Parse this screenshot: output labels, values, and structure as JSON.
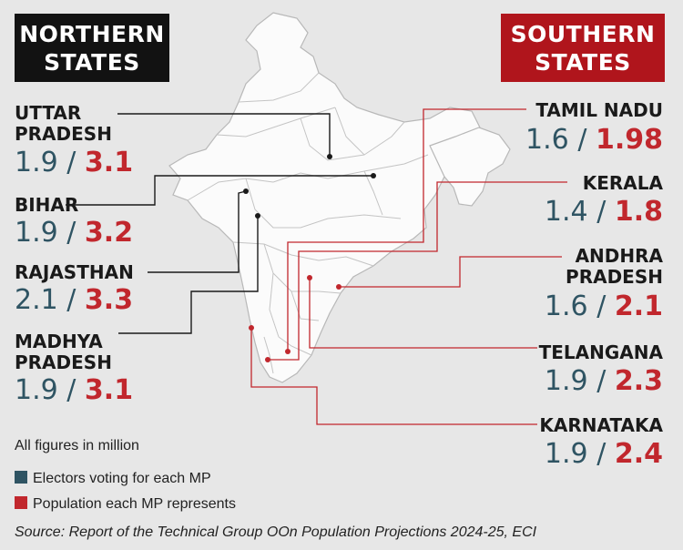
{
  "headers": {
    "northern": [
      "NORTHERN",
      "STATES"
    ],
    "southern": [
      "SOUTHERN",
      "STATES"
    ]
  },
  "northern_states": [
    {
      "name_lines": [
        "UTTAR",
        "PRADESH"
      ],
      "electors": "1.9",
      "population": "3.1"
    },
    {
      "name_lines": [
        "BIHAR"
      ],
      "electors": "1.9",
      "population": "3.2"
    },
    {
      "name_lines": [
        "RAJASTHAN"
      ],
      "electors": "2.1",
      "population": "3.3"
    },
    {
      "name_lines": [
        "MADHYA",
        "PRADESH"
      ],
      "electors": "1.9",
      "population": "3.1"
    }
  ],
  "southern_states": [
    {
      "name_lines": [
        "TAMIL NADU"
      ],
      "electors": "1.6",
      "population": "1.98"
    },
    {
      "name_lines": [
        "KERALA"
      ],
      "electors": "1.4",
      "population": "1.8"
    },
    {
      "name_lines": [
        "ANDHRA",
        "PRADESH"
      ],
      "electors": "1.6",
      "population": "2.1"
    },
    {
      "name_lines": [
        "TELANGANA"
      ],
      "electors": "1.9",
      "population": "2.3"
    },
    {
      "name_lines": [
        "KARNATAKA"
      ],
      "electors": "1.9",
      "population": "2.4"
    }
  ],
  "separator": "/",
  "note": "All figures in million",
  "legend": [
    {
      "label": "Electors voting for each MP",
      "color": "#2f5463"
    },
    {
      "label": "Population each MP represents",
      "color": "#c1272d"
    }
  ],
  "source": "Source: Report of the Technical Group OOn Population Projections 2024-25, ECI"
}
